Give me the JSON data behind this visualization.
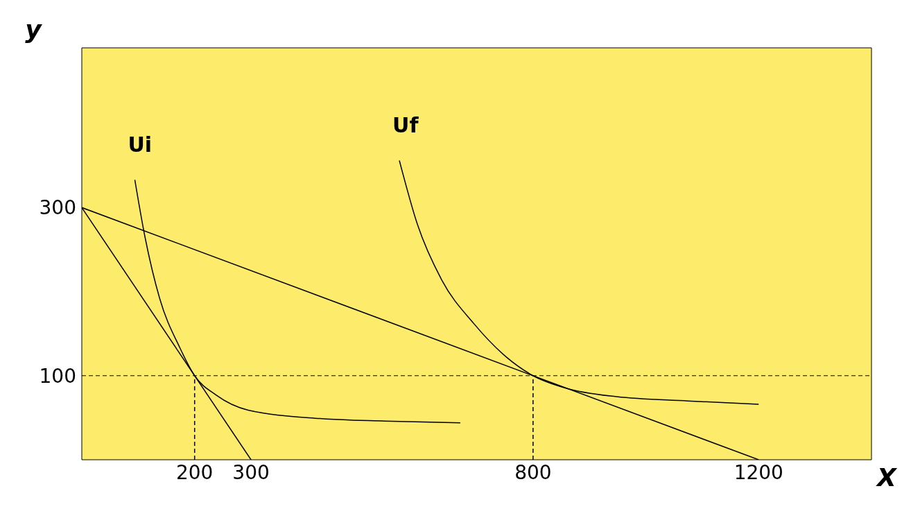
{
  "chart_data": {
    "type": "line",
    "xlabel": "X",
    "ylabel": "y",
    "xlim": [
      0,
      1400
    ],
    "ylim": [
      0,
      490
    ],
    "xticks": [
      200,
      300,
      800,
      1200
    ],
    "yticks": [
      100,
      300
    ],
    "grid": false,
    "legend": false,
    "marker": "none",
    "series": [
      {
        "name": "Ui",
        "color": "#000000",
        "x": [
          94,
          112,
          138,
          174,
          200,
          238,
          295,
          422,
          537,
          671
        ],
        "values": [
          333,
          265,
          192,
          133,
          100,
          77,
          59,
          49,
          46,
          44
        ]
      },
      {
        "name": "Uf",
        "color": "#000000",
        "x": [
          563,
          595,
          638,
          695,
          753,
          800,
          859,
          948,
          1074,
          1200
        ],
        "values": [
          356,
          280,
          214,
          162,
          122,
          100,
          85,
          75,
          70,
          66
        ]
      },
      {
        "color": "#000000",
        "x": [
          0,
          300
        ],
        "values": [
          300,
          0
        ]
      },
      {
        "color": "#000000",
        "x": [
          0,
          1200
        ],
        "values": [
          300,
          0
        ]
      },
      {
        "color": "#000000",
        "line_style": "dashed",
        "x": [
          200,
          200
        ],
        "values": [
          0,
          100
        ]
      },
      {
        "color": "#000000",
        "line_style": "dashed",
        "x": [
          800,
          800
        ],
        "values": [
          0,
          100
        ]
      }
    ],
    "ref_lines": [
      {
        "axis": "y",
        "value": 100,
        "color": "#000000",
        "line_style": "dashed"
      }
    ]
  }
}
